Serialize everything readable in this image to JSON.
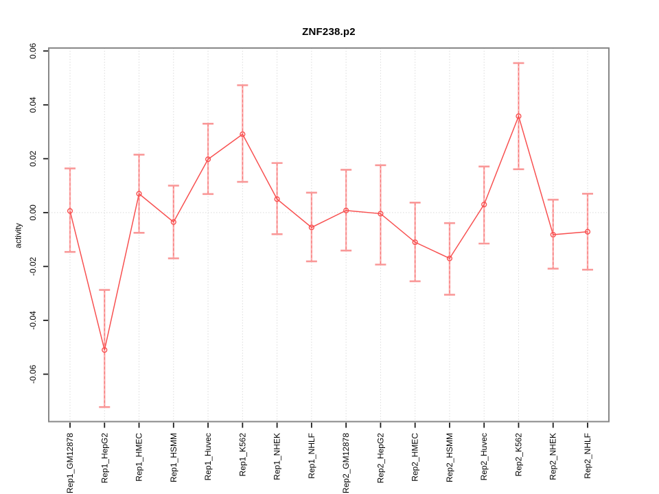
{
  "chart_data": {
    "type": "line",
    "title": "ZNF238.p2",
    "ylabel": "activity",
    "xlabel": "",
    "legend_position": "none",
    "grid": "vertical-dotted-plus-zero-line",
    "marker": "open-circle",
    "categories": [
      "Rep1_GM12878",
      "Rep1_HepG2",
      "Rep1_HMEC",
      "Rep1_HSMM",
      "Rep1_Huvec",
      "Rep1_K562",
      "Rep1_NHEK",
      "Rep1_NHLF",
      "Rep2_GM12878",
      "Rep2_HepG2",
      "Rep2_HMEC",
      "Rep2_HSMM",
      "Rep2_Huvec",
      "Rep2_K562",
      "Rep2_NHEK",
      "Rep2_NHLF"
    ],
    "values": [
      0.0006,
      -0.051,
      0.007,
      -0.0035,
      0.0198,
      0.0291,
      0.005,
      -0.0055,
      0.0008,
      -0.0004,
      -0.011,
      -0.017,
      0.003,
      0.0358,
      -0.0082,
      -0.0071
    ],
    "error_high": [
      0.0164,
      -0.0287,
      0.0215,
      0.01,
      0.033,
      0.0473,
      0.0184,
      0.0074,
      0.0159,
      0.0176,
      0.0037,
      -0.0039,
      0.0171,
      0.0555,
      0.0048,
      0.007
    ],
    "error_low": [
      -0.0146,
      -0.0722,
      -0.0075,
      -0.017,
      0.0069,
      0.0114,
      -0.008,
      -0.0181,
      -0.0141,
      -0.0193,
      -0.0255,
      -0.0305,
      -0.0115,
      0.0161,
      -0.0208,
      -0.0212
    ],
    "ylim": [
      -0.0776,
      0.0611
    ],
    "ytick_values": [
      0.06,
      0.04,
      0.02,
      0.0,
      -0.02,
      -0.04,
      -0.06
    ],
    "ytick_labels": [
      "0.06",
      "0.04",
      "0.02",
      "0.00",
      "-0.02",
      "-0.04",
      "-0.06"
    ],
    "colors": {
      "series_line": "#f85050",
      "marker_stroke": "#f85050",
      "error_bar_solid": "#fbb0b0",
      "error_bar_dash": "#f87272",
      "error_cap": "#f99898",
      "box_border": "#878787",
      "tick": "#1c1c1c",
      "grid_line": "#dadada",
      "text": "#000000",
      "background": "#ffffff"
    }
  }
}
